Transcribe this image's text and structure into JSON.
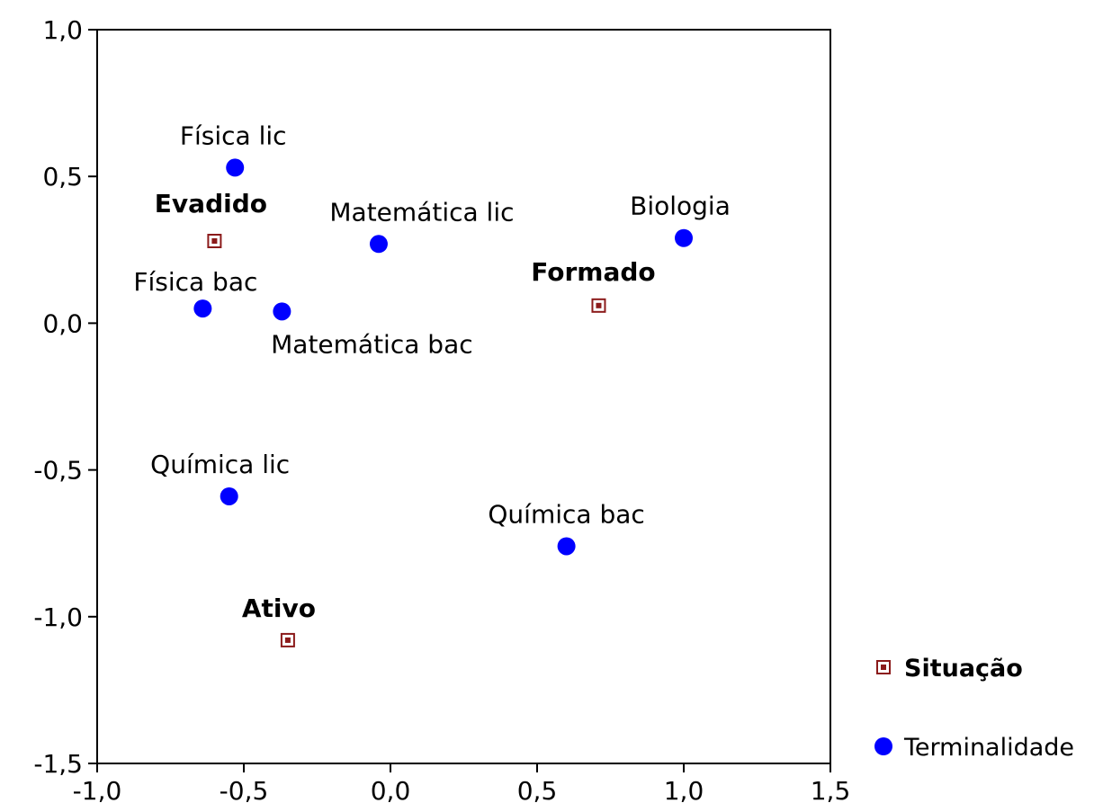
{
  "chart_data": {
    "type": "scatter",
    "xlim": [
      -1.0,
      1.5
    ],
    "ylim": [
      -1.5,
      1.0
    ],
    "x_ticks": [
      -1.0,
      -0.5,
      0.0,
      0.5,
      1.0,
      1.5
    ],
    "y_ticks": [
      -1.5,
      -1.0,
      -0.5,
      0.0,
      0.5,
      1.0
    ],
    "x_tick_labels": [
      "-1,0",
      "-0,5",
      "0,0",
      "0,5",
      "1,0",
      "1,5"
    ],
    "y_tick_labels": [
      "-1,5",
      "-1,0",
      "-0,5",
      "0,0",
      "0,5",
      "1,0"
    ],
    "grid": false,
    "legend_position": "right",
    "series": [
      {
        "name": "Situação",
        "marker": "square",
        "color": "#8b1a1a",
        "bold_labels": true,
        "points": [
          {
            "label": "Evadido",
            "x": -0.6,
            "y": 0.28
          },
          {
            "label": "Formado",
            "x": 0.71,
            "y": 0.06
          },
          {
            "label": "Ativo",
            "x": -0.35,
            "y": -1.08
          }
        ]
      },
      {
        "name": "Terminalidade",
        "marker": "circle",
        "color": "#0000ff",
        "bold_labels": false,
        "points": [
          {
            "label": "Física lic",
            "x": -0.53,
            "y": 0.53
          },
          {
            "label": "Física bac",
            "x": -0.64,
            "y": 0.05
          },
          {
            "label": "Matemática lic",
            "x": -0.04,
            "y": 0.27
          },
          {
            "label": "Matemática bac",
            "x": -0.37,
            "y": 0.04
          },
          {
            "label": "Biologia",
            "x": 1.0,
            "y": 0.29
          },
          {
            "label": "Química lic",
            "x": -0.55,
            "y": -0.59
          },
          {
            "label": "Química bac",
            "x": 0.6,
            "y": -0.76
          }
        ]
      }
    ]
  }
}
